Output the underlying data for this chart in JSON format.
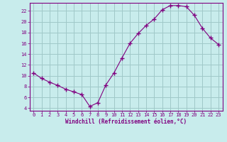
{
  "x": [
    0,
    1,
    2,
    3,
    4,
    5,
    6,
    7,
    8,
    9,
    10,
    11,
    12,
    13,
    14,
    15,
    16,
    17,
    18,
    19,
    20,
    21,
    22,
    23
  ],
  "y": [
    10.5,
    9.5,
    8.8,
    8.2,
    7.5,
    7.0,
    6.5,
    4.3,
    5.0,
    8.3,
    10.5,
    13.3,
    16.0,
    17.8,
    19.3,
    20.5,
    22.2,
    23.0,
    23.0,
    22.8,
    21.2,
    18.8,
    17.0,
    15.8
  ],
  "line_color": "#800080",
  "marker": "+",
  "marker_size": 4,
  "bg_color": "#c8ecec",
  "grid_color": "#a0c8c8",
  "xlabel": "Windchill (Refroidissement éolien,°C)",
  "xlim": [
    -0.5,
    23.5
  ],
  "ylim": [
    3.5,
    23.5
  ],
  "yticks": [
    4,
    6,
    8,
    10,
    12,
    14,
    16,
    18,
    20,
    22
  ],
  "xticks": [
    0,
    1,
    2,
    3,
    4,
    5,
    6,
    7,
    8,
    9,
    10,
    11,
    12,
    13,
    14,
    15,
    16,
    17,
    18,
    19,
    20,
    21,
    22,
    23
  ],
  "tick_color": "#800080",
  "label_color": "#800080",
  "axis_color": "#800080",
  "tick_fontsize": 5.0,
  "xlabel_fontsize": 5.5
}
